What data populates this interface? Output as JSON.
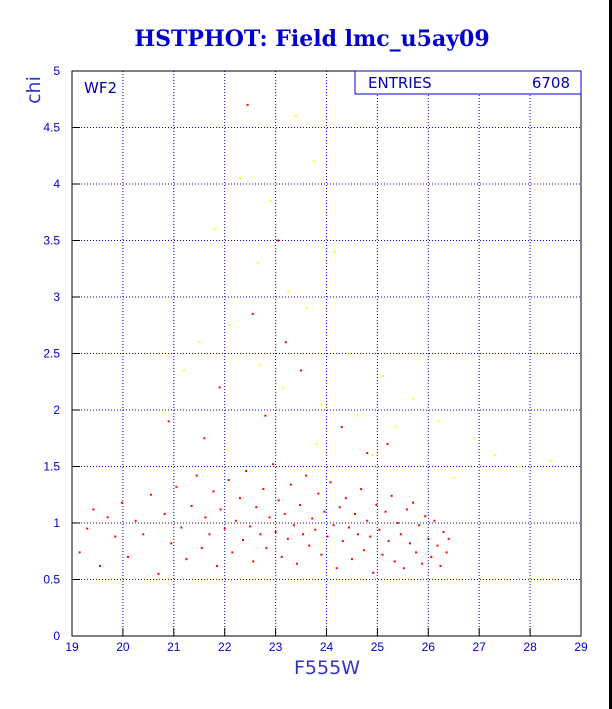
{
  "chart_data": {
    "type": "scatter",
    "title": "HSTPHOT: Field lmc_u5ay09",
    "xlabel": "F555W",
    "ylabel": "chi",
    "xlim": [
      19,
      29
    ],
    "ylim": [
      0,
      5
    ],
    "xticks": [
      19,
      20,
      21,
      22,
      23,
      24,
      25,
      26,
      27,
      28,
      29
    ],
    "yticks": [
      0,
      0.5,
      1,
      1.5,
      2,
      2.5,
      3,
      3.5,
      4,
      4.5,
      5
    ],
    "grid": true,
    "chip_label": "WF2",
    "stats_box": {
      "label": "ENTRIES",
      "value": "6708",
      "placement": "top-right"
    },
    "colors": {
      "background": "#ffffff",
      "frame": "#000000",
      "grid": "#0000cc",
      "text": "#0000cc"
    },
    "series": [
      {
        "color": "#ff0000",
        "points": [
          [
            19.15,
            0.74
          ],
          [
            19.3,
            0.95
          ],
          [
            19.42,
            1.12
          ],
          [
            19.55,
            0.62
          ],
          [
            19.7,
            1.05
          ],
          [
            19.85,
            0.88
          ],
          [
            19.98,
            1.18
          ],
          [
            20.1,
            0.7
          ],
          [
            20.25,
            1.02
          ],
          [
            20.4,
            0.9
          ],
          [
            20.55,
            1.25
          ],
          [
            20.7,
            0.55
          ],
          [
            20.82,
            1.08
          ],
          [
            20.95,
            0.82
          ],
          [
            21.05,
            1.32
          ],
          [
            21.15,
            0.96
          ],
          [
            21.25,
            0.68
          ],
          [
            21.35,
            1.15
          ],
          [
            21.45,
            1.42
          ],
          [
            21.55,
            0.78
          ],
          [
            21.62,
            1.05
          ],
          [
            21.7,
            0.9
          ],
          [
            21.78,
            1.28
          ],
          [
            21.85,
            0.62
          ],
          [
            21.92,
            1.12
          ],
          [
            22.0,
            0.95
          ],
          [
            22.08,
            1.38
          ],
          [
            22.15,
            0.74
          ],
          [
            22.22,
            1.02
          ],
          [
            22.3,
            1.22
          ],
          [
            22.36,
            0.85
          ],
          [
            22.42,
            1.46
          ],
          [
            22.5,
            0.97
          ],
          [
            22.56,
            0.66
          ],
          [
            22.62,
            1.14
          ],
          [
            22.7,
            0.9
          ],
          [
            22.76,
            1.3
          ],
          [
            22.82,
            0.78
          ],
          [
            22.88,
            1.05
          ],
          [
            22.95,
            1.52
          ],
          [
            23.0,
            0.92
          ],
          [
            23.06,
            1.2
          ],
          [
            23.12,
            0.7
          ],
          [
            23.18,
            1.08
          ],
          [
            23.24,
            0.86
          ],
          [
            23.3,
            1.34
          ],
          [
            23.36,
            0.98
          ],
          [
            23.42,
            0.64
          ],
          [
            23.48,
            1.16
          ],
          [
            23.54,
            0.9
          ],
          [
            23.6,
            1.42
          ],
          [
            23.66,
            0.8
          ],
          [
            23.72,
            1.04
          ],
          [
            23.78,
            0.94
          ],
          [
            23.84,
            1.26
          ],
          [
            23.9,
            0.72
          ],
          [
            23.96,
            1.1
          ],
          [
            24.02,
            0.88
          ],
          [
            24.08,
            1.36
          ],
          [
            24.14,
            0.98
          ],
          [
            24.2,
            0.6
          ],
          [
            24.26,
            1.14
          ],
          [
            24.32,
            0.84
          ],
          [
            24.38,
            1.22
          ],
          [
            24.44,
            0.96
          ],
          [
            24.5,
            0.68
          ],
          [
            24.56,
            1.08
          ],
          [
            24.62,
            0.9
          ],
          [
            24.68,
            1.3
          ],
          [
            24.74,
            0.76
          ],
          [
            24.8,
            1.02
          ],
          [
            24.86,
            0.88
          ],
          [
            24.92,
            0.56
          ],
          [
            24.98,
            1.16
          ],
          [
            25.04,
            0.94
          ],
          [
            25.1,
            0.72
          ],
          [
            25.16,
            1.1
          ],
          [
            25.22,
            0.84
          ],
          [
            25.28,
            1.24
          ],
          [
            25.34,
            0.66
          ],
          [
            25.4,
            1.0
          ],
          [
            25.46,
            0.9
          ],
          [
            25.52,
            0.6
          ],
          [
            25.58,
            1.12
          ],
          [
            25.64,
            0.82
          ],
          [
            25.7,
            1.18
          ],
          [
            25.76,
            0.74
          ],
          [
            25.82,
            0.98
          ],
          [
            25.88,
            0.64
          ],
          [
            25.94,
            1.06
          ],
          [
            26.0,
            0.86
          ],
          [
            26.06,
            0.7
          ],
          [
            26.12,
            1.02
          ],
          [
            26.18,
            0.8
          ],
          [
            26.24,
            0.62
          ],
          [
            26.3,
            0.92
          ],
          [
            26.36,
            0.74
          ],
          [
            26.4,
            0.86
          ],
          [
            22.55,
            2.85
          ],
          [
            23.2,
            2.6
          ],
          [
            21.9,
            2.2
          ],
          [
            22.8,
            1.95
          ],
          [
            23.5,
            2.35
          ],
          [
            24.3,
            1.85
          ],
          [
            25.2,
            1.7
          ],
          [
            22.45,
            4.7
          ],
          [
            23.05,
            3.5
          ],
          [
            21.6,
            1.75
          ],
          [
            24.8,
            1.62
          ],
          [
            20.9,
            1.9
          ]
        ]
      },
      {
        "color": "#ffff00",
        "points": [
          [
            22.3,
            4.05
          ],
          [
            22.9,
            3.85
          ],
          [
            23.4,
            4.6
          ],
          [
            23.75,
            4.2
          ],
          [
            22.65,
            3.3
          ],
          [
            23.25,
            3.05
          ],
          [
            21.8,
            3.6
          ],
          [
            24.15,
            3.4
          ],
          [
            22.1,
            2.75
          ],
          [
            23.6,
            2.9
          ],
          [
            24.45,
            2.5
          ],
          [
            25.1,
            2.3
          ],
          [
            25.7,
            2.1
          ],
          [
            26.2,
            1.9
          ],
          [
            26.9,
            1.75
          ],
          [
            27.3,
            1.6
          ],
          [
            27.8,
            1.5
          ],
          [
            28.4,
            1.55
          ],
          [
            22.7,
            2.4
          ],
          [
            23.15,
            2.2
          ],
          [
            23.9,
            2.05
          ],
          [
            24.6,
            1.95
          ],
          [
            25.35,
            1.85
          ],
          [
            21.5,
            2.6
          ],
          [
            21.2,
            2.35
          ],
          [
            20.8,
            2.0
          ],
          [
            22.05,
            1.65
          ],
          [
            23.8,
            1.7
          ],
          [
            24.9,
            1.6
          ],
          [
            26.5,
            1.4
          ]
        ]
      }
    ]
  }
}
